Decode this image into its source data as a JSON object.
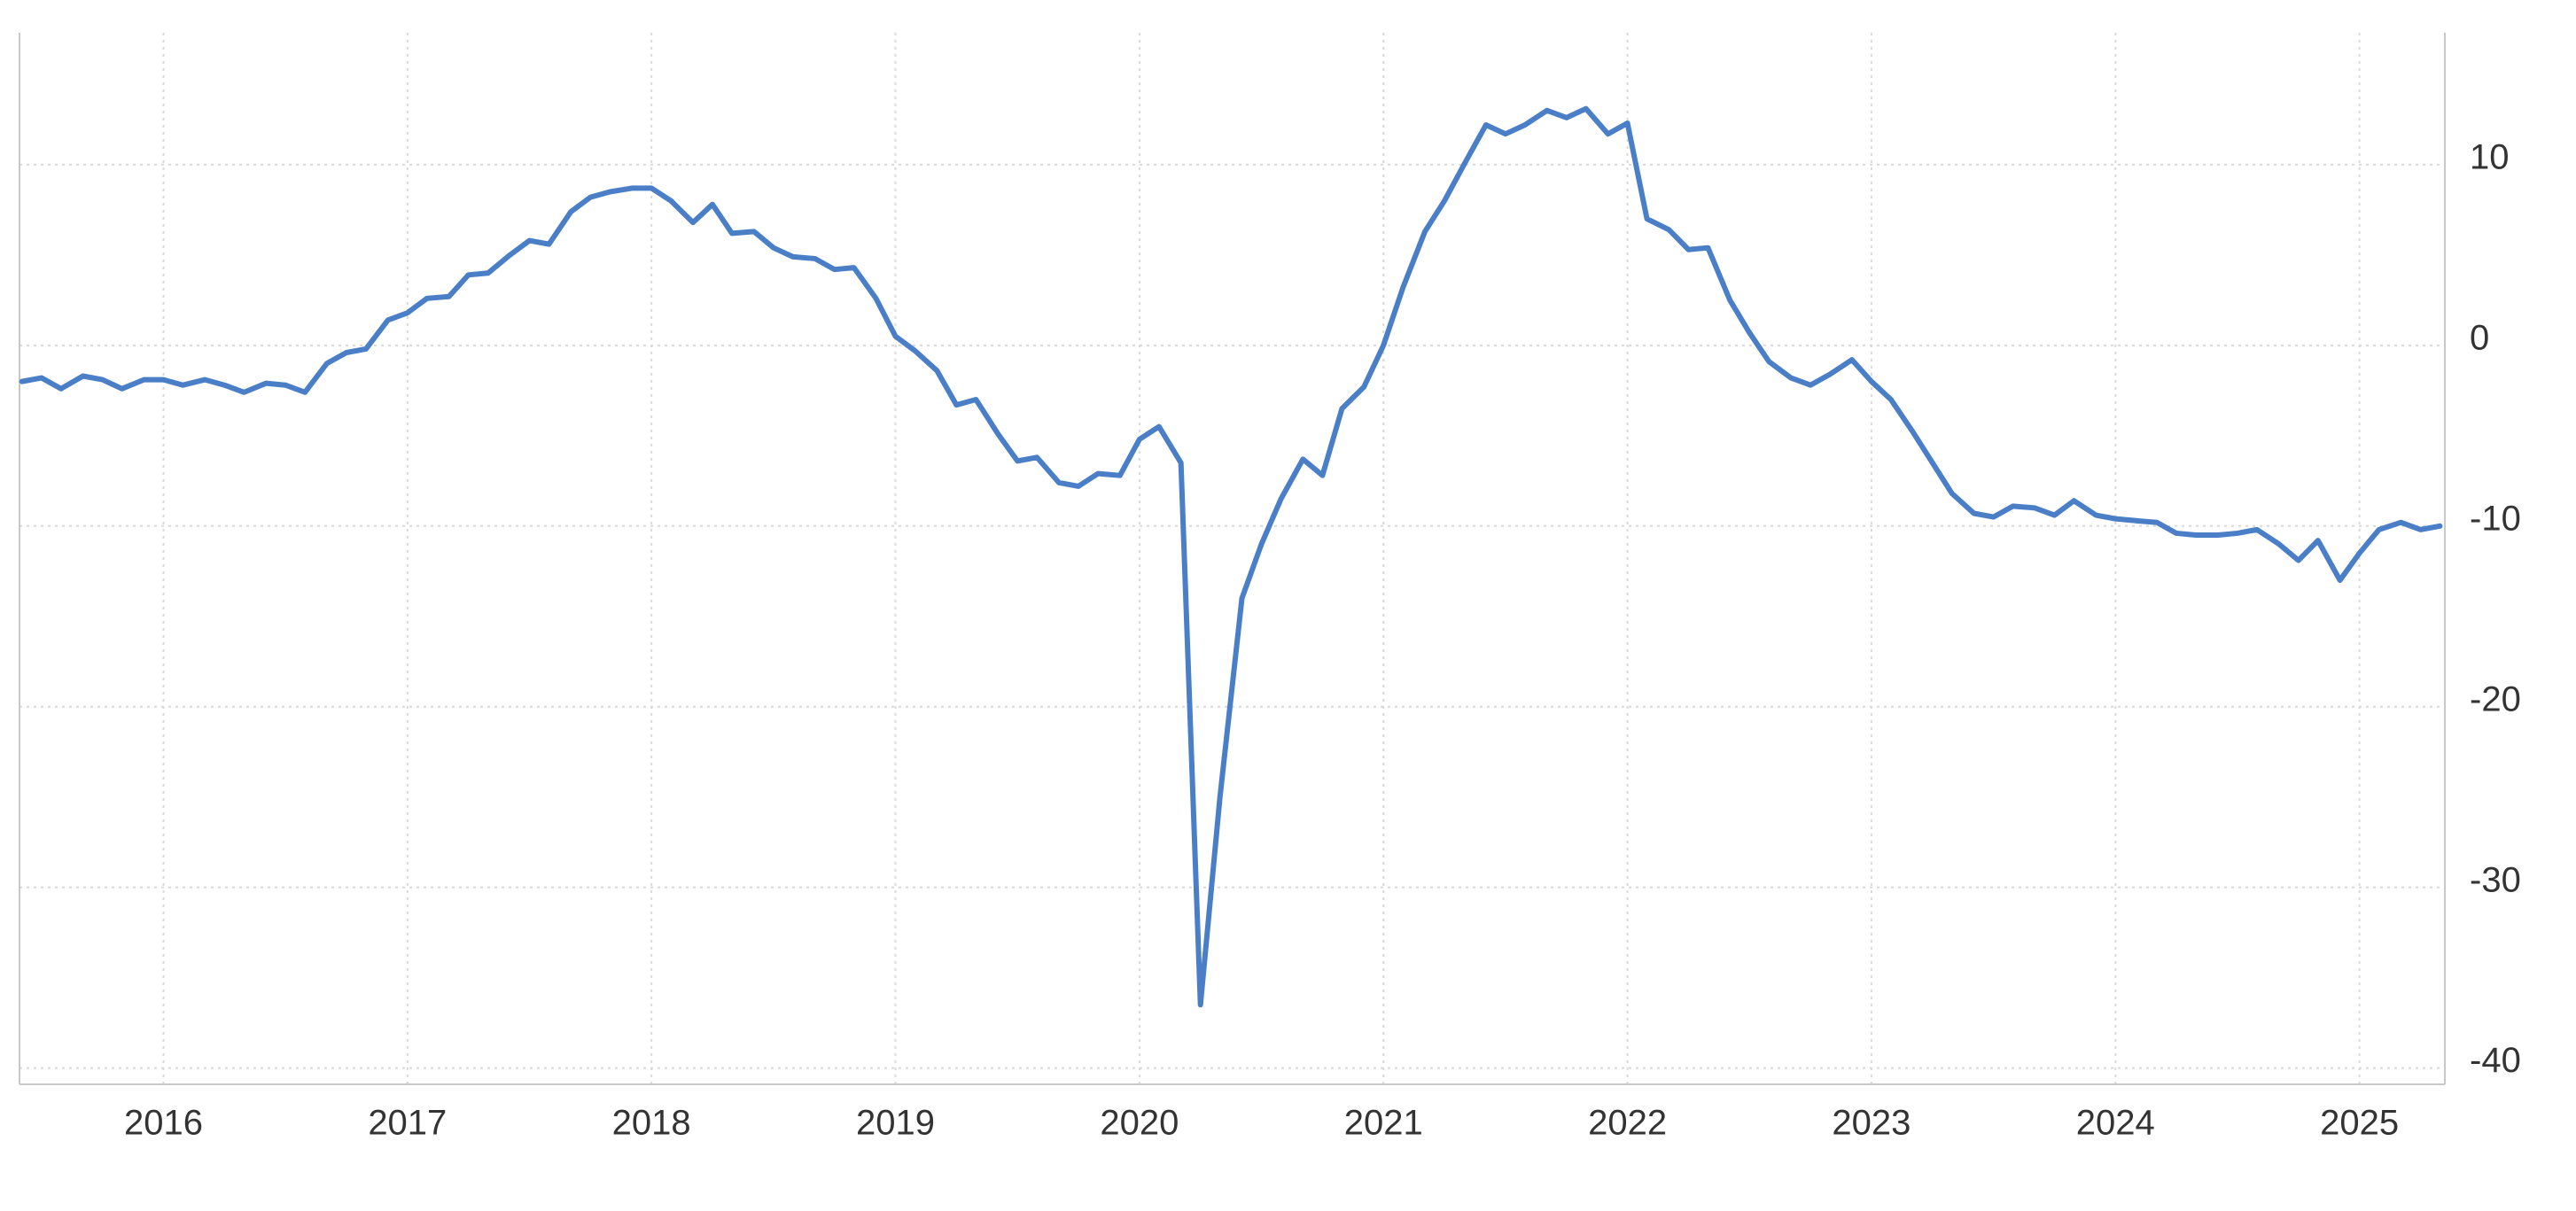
{
  "chart_data": {
    "type": "line",
    "color": "#4a7fc8",
    "grid": true,
    "xlim": [
      2015.41,
      2025.35
    ],
    "xticks": [
      2016,
      2017,
      2018,
      2019,
      2020,
      2021,
      2022,
      2023,
      2024,
      2025
    ],
    "ylim": [
      -40.9,
      17.3
    ],
    "yticks": [
      10,
      0,
      -10,
      -20,
      -30,
      -40
    ],
    "x": [
      2015.42,
      2015.5,
      2015.58,
      2015.67,
      2015.75,
      2015.83,
      2015.92,
      2016.0,
      2016.08,
      2016.17,
      2016.25,
      2016.33,
      2016.42,
      2016.5,
      2016.58,
      2016.67,
      2016.75,
      2016.83,
      2016.92,
      2017.0,
      2017.08,
      2017.17,
      2017.25,
      2017.33,
      2017.42,
      2017.5,
      2017.58,
      2017.67,
      2017.75,
      2017.83,
      2017.92,
      2018.0,
      2018.08,
      2018.17,
      2018.25,
      2018.33,
      2018.42,
      2018.5,
      2018.58,
      2018.67,
      2018.75,
      2018.83,
      2018.92,
      2019.0,
      2019.08,
      2019.17,
      2019.25,
      2019.33,
      2019.42,
      2019.5,
      2019.58,
      2019.67,
      2019.75,
      2019.83,
      2019.92,
      2020.0,
      2020.08,
      2020.17,
      2020.25,
      2020.33,
      2020.42,
      2020.5,
      2020.58,
      2020.67,
      2020.75,
      2020.83,
      2020.92,
      2021.0,
      2021.08,
      2021.17,
      2021.25,
      2021.33,
      2021.42,
      2021.5,
      2021.58,
      2021.67,
      2021.75,
      2021.83,
      2021.92,
      2022.0,
      2022.08,
      2022.17,
      2022.25,
      2022.33,
      2022.42,
      2022.5,
      2022.58,
      2022.67,
      2022.75,
      2022.83,
      2022.92,
      2023.0,
      2023.08,
      2023.17,
      2023.25,
      2023.33,
      2023.42,
      2023.5,
      2023.58,
      2023.67,
      2023.75,
      2023.83,
      2023.92,
      2024.0,
      2024.08,
      2024.17,
      2024.25,
      2024.33,
      2024.42,
      2024.5,
      2024.58,
      2024.67,
      2024.75,
      2024.83,
      2024.92,
      2025.0,
      2025.08,
      2025.17,
      2025.25,
      2025.33
    ],
    "values": [
      -2.0,
      -1.8,
      -2.4,
      -1.7,
      -1.9,
      -2.4,
      -1.9,
      -1.9,
      -2.2,
      -1.9,
      -2.2,
      -2.6,
      -2.1,
      -2.2,
      -2.6,
      -1.0,
      -0.4,
      -0.2,
      1.4,
      1.8,
      2.6,
      2.7,
      3.9,
      4.0,
      5.0,
      5.8,
      5.6,
      7.4,
      8.2,
      8.5,
      8.7,
      8.7,
      8.0,
      6.8,
      7.8,
      6.2,
      6.3,
      5.4,
      4.9,
      4.8,
      4.2,
      4.3,
      2.6,
      0.5,
      -0.3,
      -1.4,
      -3.3,
      -3.0,
      -4.9,
      -6.4,
      -6.2,
      -7.6,
      -7.8,
      -7.1,
      -7.2,
      -5.2,
      -4.5,
      -6.5,
      -36.5,
      -25.0,
      -14.0,
      -11.0,
      -8.5,
      -6.3,
      -7.2,
      -3.5,
      -2.3,
      0.0,
      3.2,
      6.3,
      8.0,
      10.0,
      12.2,
      11.7,
      12.2,
      13.0,
      12.6,
      13.1,
      11.7,
      12.3,
      7.0,
      6.4,
      5.3,
      5.4,
      2.5,
      0.7,
      -0.9,
      -1.8,
      -2.2,
      -1.6,
      -0.8,
      -2.0,
      -3.0,
      -4.8,
      -6.5,
      -8.2,
      -9.3,
      -9.5,
      -8.9,
      -9.0,
      -9.4,
      -8.6,
      -9.4,
      -9.6,
      -9.7,
      -9.8,
      -10.4,
      -10.5,
      -10.5,
      -10.4,
      -10.2,
      -11.0,
      -11.9,
      -10.8,
      -13.0,
      -11.5,
      -10.2,
      -9.8,
      -10.2,
      -10.0
    ]
  }
}
